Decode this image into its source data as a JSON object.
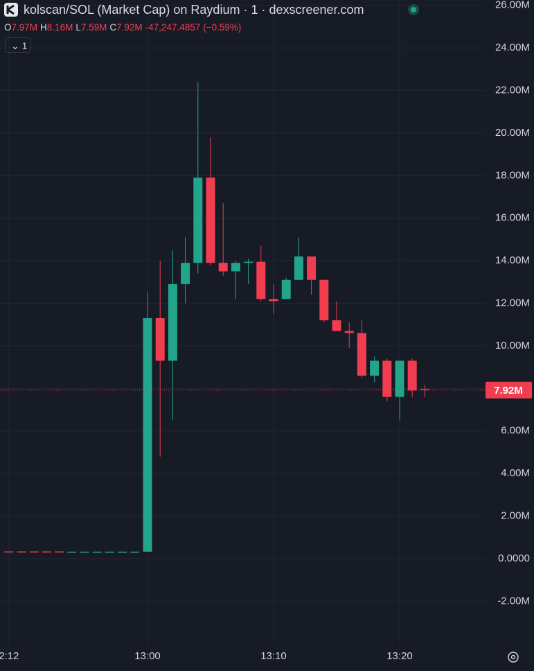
{
  "chart_data": {
    "type": "candlestick",
    "title": "kolscan/SOL (Market Cap) on Raydium · 1 · dexscreener.com",
    "ohlc_legend": [
      {
        "key": "O",
        "value": "7.97M"
      },
      {
        "key": "H",
        "value": "8.16M"
      },
      {
        "key": "L",
        "value": "7.59M"
      },
      {
        "key": "C",
        "value": "7.92M"
      }
    ],
    "change": "-47,247.4857",
    "change_pct": "(−0.59%)",
    "indicator_count": "1",
    "last_price_label": "7.92M",
    "up_color": "#22a58b",
    "down_color": "#f03e50",
    "categories": [
      "2:12",
      null,
      null,
      null,
      null,
      null,
      null,
      null,
      null,
      null,
      null,
      "13:00",
      null,
      null,
      null,
      null,
      null,
      null,
      null,
      null,
      null,
      "13:10",
      null,
      null,
      null,
      null,
      null,
      null,
      null,
      null,
      null,
      "13:20",
      null,
      null
    ],
    "open": [
      340000,
      340000,
      340000,
      340000,
      340000,
      330000,
      330000,
      330000,
      330000,
      330000,
      330000,
      330000,
      11300000,
      9300000,
      12900000,
      13900000,
      17900000,
      13900000,
      13500000,
      13900000,
      13950000,
      12200000,
      12200000,
      13100000,
      14200000,
      13100000,
      11200000,
      10700000,
      10600000,
      8600000,
      9300000,
      7600000,
      9300000,
      7970000
    ],
    "high": [
      340000,
      340000,
      340000,
      340000,
      340000,
      330000,
      330000,
      330000,
      330000,
      330000,
      330000,
      12500000,
      14000000,
      14500000,
      15100000,
      22400000,
      19800000,
      16700000,
      14000000,
      14100000,
      14700000,
      12900000,
      13200000,
      15100000,
      14200000,
      13100000,
      12100000,
      11100000,
      11200000,
      9500000,
      9400000,
      9300000,
      9400000,
      8160000
    ],
    "low": [
      330000,
      330000,
      330000,
      330000,
      330000,
      330000,
      330000,
      330000,
      330000,
      330000,
      330000,
      330000,
      4800000,
      6500000,
      12000000,
      13400000,
      13800000,
      13300000,
      12200000,
      12900000,
      12100000,
      11500000,
      12200000,
      13100000,
      12400000,
      11100000,
      10700000,
      9900000,
      8500000,
      8300000,
      7400000,
      6500000,
      7600000,
      7590000
    ],
    "close": [
      330000,
      330000,
      330000,
      330000,
      330000,
      330000,
      330000,
      330000,
      330000,
      330000,
      330000,
      11300000,
      9300000,
      12900000,
      13900000,
      17900000,
      13900000,
      13500000,
      13900000,
      13950000,
      12200000,
      12100000,
      13100000,
      14200000,
      13100000,
      11200000,
      10700000,
      10600000,
      8600000,
      9300000,
      7600000,
      9300000,
      7900000,
      7920000
    ],
    "ylim": [
      -4040000,
      26250000
    ],
    "yticks": [
      {
        "value": -2000000,
        "label": "-2.00M"
      },
      {
        "value": 0,
        "label": "0.0000"
      },
      {
        "value": 2000000,
        "label": "2.00M"
      },
      {
        "value": 4000000,
        "label": "4.00M"
      },
      {
        "value": 6000000,
        "label": "6.00M"
      },
      {
        "value": 8000000,
        "label": "8.00M"
      },
      {
        "value": 10000000,
        "label": "10.00M"
      },
      {
        "value": 12000000,
        "label": "12.00M"
      },
      {
        "value": 14000000,
        "label": "14.00M"
      },
      {
        "value": 16000000,
        "label": "16.00M"
      },
      {
        "value": 18000000,
        "label": "18.00M"
      },
      {
        "value": 20000000,
        "label": "20.00M"
      },
      {
        "value": 22000000,
        "label": "22.00M"
      },
      {
        "value": 24000000,
        "label": "24.00M"
      },
      {
        "value": 26000000,
        "label": "26.00M"
      }
    ],
    "grid": true
  }
}
